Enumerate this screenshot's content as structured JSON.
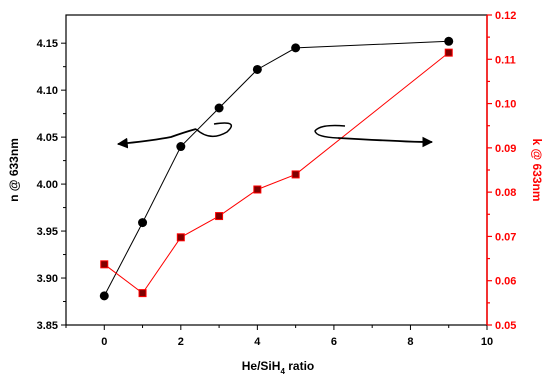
{
  "chart_data": {
    "type": "line",
    "xlabel": {
      "main": "He/SiH",
      "sub": "4",
      "suffix": " ratio"
    },
    "xlim": [
      -1,
      10
    ],
    "xticks": [
      0,
      2,
      4,
      6,
      8,
      10
    ],
    "xtick_labels": [
      "0",
      "2",
      "4",
      "6",
      "8",
      "10"
    ],
    "y_left": {
      "label": "n @ 633nm",
      "lim": [
        3.85,
        4.18
      ],
      "ticks": [
        3.85,
        3.9,
        3.95,
        4.0,
        4.05,
        4.1,
        4.15
      ],
      "tick_labels": [
        "3.85",
        "3.90",
        "3.95",
        "4.00",
        "4.05",
        "4.10",
        "4.15"
      ],
      "color": "#000000"
    },
    "y_right": {
      "label": "k @ 633nm",
      "lim": [
        0.05,
        0.12
      ],
      "ticks": [
        0.05,
        0.06,
        0.07,
        0.08,
        0.09,
        0.1,
        0.11,
        0.12
      ],
      "tick_labels": [
        "0.05",
        "0.06",
        "0.07",
        "0.08",
        "0.09",
        "0.10",
        "0.11",
        "0.12"
      ],
      "color": "#ff0000"
    },
    "series": [
      {
        "axis": "left",
        "marker": "circle",
        "color": "#000000",
        "x": [
          0,
          1,
          2,
          3,
          4,
          5,
          9
        ],
        "y": [
          3.881,
          3.959,
          4.04,
          4.081,
          4.122,
          4.145,
          4.152
        ]
      },
      {
        "axis": "right",
        "marker": "square",
        "color": "#ff0000",
        "marker_fill": "#800000",
        "x": [
          0,
          1,
          2,
          3,
          4,
          5,
          9
        ],
        "y": [
          0.0637,
          0.0572,
          0.0698,
          0.0746,
          0.0806,
          0.084,
          0.1115
        ]
      }
    ],
    "annotations": [
      {
        "type": "curly-arrow",
        "direction": "left",
        "points_to": "left-axis"
      },
      {
        "type": "curly-arrow",
        "direction": "right",
        "points_to": "right-axis"
      }
    ]
  }
}
